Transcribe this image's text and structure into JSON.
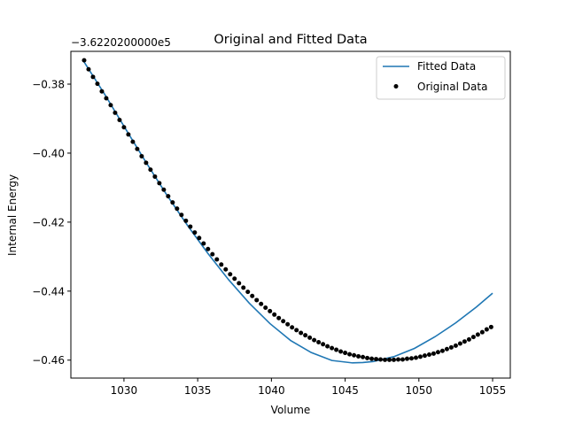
{
  "chart_data": {
    "type": "scatter",
    "title": "Original and Fitted Data",
    "xlabel": "Volume",
    "ylabel": "Internal Energy",
    "offset_text": "−3.6220200000e5",
    "xlim": [
      1026.4,
      1056.2
    ],
    "ylim": [
      -0.4652,
      -0.3705
    ],
    "xticks": [
      1030,
      1035,
      1040,
      1045,
      1050,
      1055
    ],
    "xtick_labels": [
      "1030",
      "1035",
      "1040",
      "1045",
      "1050",
      "1055"
    ],
    "yticks": [
      -0.46,
      -0.44,
      -0.42,
      -0.4,
      -0.38
    ],
    "ytick_labels": [
      "−0.46",
      "−0.44",
      "−0.42",
      "−0.40",
      "−0.38"
    ],
    "grid": false,
    "legend_position": "top-right",
    "series": [
      {
        "name": "Fitted Data",
        "kind": "line",
        "color": "#1f77b4",
        "x": [
          1027.3,
          1028.7,
          1030.1,
          1031.5,
          1032.9,
          1034.3,
          1035.7,
          1037.1,
          1038.5,
          1039.9,
          1041.3,
          1042.7,
          1044.1,
          1045.5,
          1046.2,
          1046.9,
          1048.3,
          1049.7,
          1051.1,
          1052.5,
          1053.9,
          1055.0
        ],
        "y": [
          -0.3736,
          -0.383,
          -0.3929,
          -0.4027,
          -0.4121,
          -0.4209,
          -0.4291,
          -0.4367,
          -0.4435,
          -0.4494,
          -0.4543,
          -0.4578,
          -0.4601,
          -0.4608,
          -0.4607,
          -0.4604,
          -0.459,
          -0.4566,
          -0.4532,
          -0.4492,
          -0.4446,
          -0.4406
        ]
      },
      {
        "name": "Original Data",
        "kind": "scatter",
        "color": "#000000",
        "x": [
          1027.3,
          1027.6,
          1027.9,
          1028.2,
          1028.5,
          1028.8,
          1029.1,
          1029.4,
          1029.7,
          1030.0,
          1030.3,
          1030.6,
          1030.9,
          1031.2,
          1031.5,
          1031.8,
          1032.1,
          1032.4,
          1032.7,
          1033.0,
          1033.3,
          1033.6,
          1033.9,
          1034.2,
          1034.5,
          1034.8,
          1035.1,
          1035.4,
          1035.7,
          1036.0,
          1036.3,
          1036.6,
          1036.9,
          1037.2,
          1037.5,
          1037.8,
          1038.1,
          1038.4,
          1038.7,
          1039.0,
          1039.3,
          1039.6,
          1039.9,
          1040.2,
          1040.5,
          1040.8,
          1041.1,
          1041.4,
          1041.7,
          1042.0,
          1042.3,
          1042.6,
          1042.9,
          1043.2,
          1043.5,
          1043.8,
          1044.1,
          1044.4,
          1044.7,
          1045.0,
          1045.3,
          1045.6,
          1045.9,
          1046.2,
          1046.5,
          1046.8,
          1047.1,
          1047.4,
          1047.7,
          1048.0,
          1048.3,
          1048.6,
          1048.9,
          1049.2,
          1049.5,
          1049.8,
          1050.1,
          1050.4,
          1050.7,
          1051.0,
          1051.3,
          1051.6,
          1051.9,
          1052.2,
          1052.5,
          1052.8,
          1053.1,
          1053.4,
          1053.7,
          1054.0,
          1054.3,
          1054.6,
          1054.9
        ],
        "y": [
          -0.3731,
          -0.3757,
          -0.3779,
          -0.3799,
          -0.3821,
          -0.3841,
          -0.3861,
          -0.3883,
          -0.3904,
          -0.3925,
          -0.3946,
          -0.3967,
          -0.3988,
          -0.4009,
          -0.4028,
          -0.4048,
          -0.4068,
          -0.4087,
          -0.4106,
          -0.4125,
          -0.4143,
          -0.4161,
          -0.4179,
          -0.4196,
          -0.4213,
          -0.423,
          -0.4246,
          -0.4262,
          -0.4278,
          -0.4293,
          -0.4308,
          -0.4323,
          -0.4337,
          -0.4351,
          -0.4364,
          -0.4377,
          -0.439,
          -0.4402,
          -0.4414,
          -0.4426,
          -0.4437,
          -0.4448,
          -0.4458,
          -0.4468,
          -0.4478,
          -0.4487,
          -0.4496,
          -0.4505,
          -0.4513,
          -0.4521,
          -0.4528,
          -0.4535,
          -0.4542,
          -0.4548,
          -0.4554,
          -0.456,
          -0.4565,
          -0.457,
          -0.4575,
          -0.4579,
          -0.4583,
          -0.4586,
          -0.4589,
          -0.4591,
          -0.4594,
          -0.4596,
          -0.4597,
          -0.4598,
          -0.4599,
          -0.4599,
          -0.4599,
          -0.4598,
          -0.4598,
          -0.4596,
          -0.4595,
          -0.4593,
          -0.459,
          -0.4587,
          -0.4584,
          -0.4581,
          -0.4577,
          -0.4573,
          -0.4568,
          -0.4563,
          -0.4558,
          -0.4552,
          -0.4546,
          -0.454,
          -0.4533,
          -0.4526,
          -0.4519,
          -0.4511,
          -0.4504
        ]
      }
    ]
  }
}
